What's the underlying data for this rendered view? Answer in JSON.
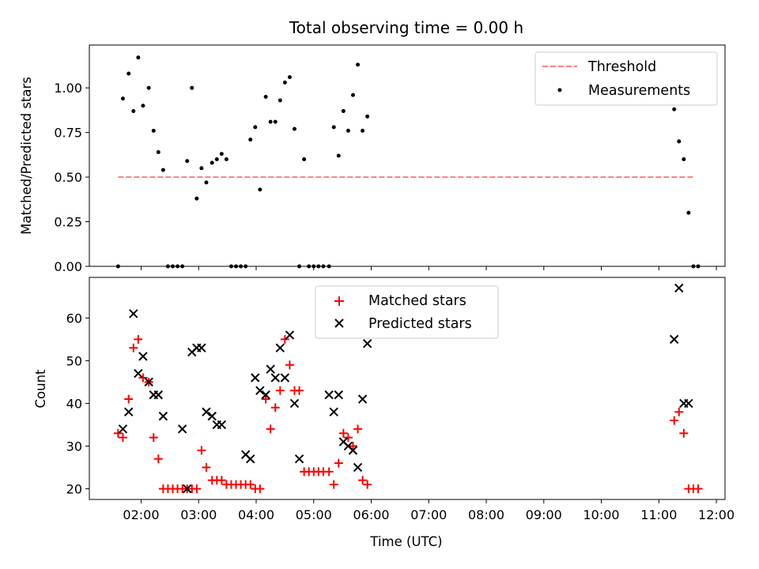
{
  "chart_data": [
    {
      "type": "scatter",
      "title": "Total observing time = 0.00 h",
      "xlabel": "",
      "ylabel": "Matched/Predicted stars",
      "xlim": [
        "01:06",
        "12:09"
      ],
      "ylim": [
        0,
        1.24
      ],
      "yticks": [
        "0.00",
        "0.25",
        "0.50",
        "0.75",
        "1.00"
      ],
      "legend": "top-right",
      "series": [
        {
          "name": "Threshold",
          "kind": "dashed-line",
          "color": "#ff7f7f",
          "x": [
            "01:36",
            "11:36"
          ],
          "y": [
            0.5,
            0.5
          ]
        },
        {
          "name": "Measurements",
          "kind": "points",
          "color": "#000000",
          "x": [
            "01:36",
            "01:41",
            "01:47",
            "01:52",
            "01:57",
            "02:02",
            "02:08",
            "02:13",
            "02:18",
            "02:23",
            "02:28",
            "02:33",
            "02:38",
            "02:43",
            "02:48",
            "02:53",
            "02:58",
            "03:03",
            "03:08",
            "03:14",
            "03:19",
            "03:24",
            "03:29",
            "03:34",
            "03:39",
            "03:44",
            "03:49",
            "03:54",
            "03:59",
            "04:04",
            "04:10",
            "04:15",
            "04:20",
            "04:25",
            "04:30",
            "04:35",
            "04:40",
            "04:45",
            "04:50",
            "04:55",
            "05:00",
            "05:05",
            "05:10",
            "05:16",
            "05:21",
            "05:26",
            "05:31",
            "05:36",
            "05:41",
            "05:46",
            "05:51",
            "05:56",
            "11:16",
            "11:21",
            "11:26",
            "11:31",
            "11:36",
            "11:41"
          ],
          "y": [
            0.0,
            0.94,
            1.08,
            0.87,
            1.17,
            0.9,
            1.0,
            0.76,
            0.64,
            0.54,
            0.0,
            0.0,
            0.0,
            0.0,
            0.59,
            1.0,
            0.38,
            0.55,
            0.47,
            0.58,
            0.6,
            0.63,
            0.6,
            0.0,
            0.0,
            0.0,
            0.0,
            0.71,
            0.78,
            0.43,
            0.95,
            0.81,
            0.81,
            0.93,
            1.03,
            1.06,
            0.77,
            0.0,
            0.6,
            0.0,
            0.0,
            0.0,
            0.0,
            0.0,
            0.78,
            0.62,
            0.87,
            0.76,
            0.96,
            1.13,
            0.76,
            0.84,
            0.88,
            0.7,
            0.6,
            0.3,
            0.0,
            0.0
          ]
        }
      ]
    },
    {
      "type": "scatter",
      "title": "",
      "xlabel": "Time (UTC)",
      "ylabel": "Count",
      "xlim": [
        "01:06",
        "12:09"
      ],
      "ylim": [
        17.5,
        69.5
      ],
      "yticks": [
        "20",
        "30",
        "40",
        "50",
        "60"
      ],
      "xticks": [
        "02:00",
        "03:00",
        "04:00",
        "05:00",
        "06:00",
        "07:00",
        "08:00",
        "09:00",
        "10:00",
        "11:00",
        "12:00"
      ],
      "legend": "top-center",
      "series": [
        {
          "name": "Matched stars",
          "marker": "plus",
          "color": "#ff0000",
          "x": [
            "01:36",
            "01:41",
            "01:47",
            "01:52",
            "01:57",
            "02:02",
            "02:08",
            "02:13",
            "02:18",
            "02:23",
            "02:28",
            "02:33",
            "02:38",
            "02:43",
            "02:48",
            "02:53",
            "02:58",
            "03:03",
            "03:08",
            "03:14",
            "03:19",
            "03:24",
            "03:29",
            "03:34",
            "03:39",
            "03:44",
            "03:49",
            "03:54",
            "03:59",
            "04:04",
            "04:10",
            "04:15",
            "04:20",
            "04:25",
            "04:30",
            "04:35",
            "04:40",
            "04:45",
            "04:50",
            "04:55",
            "05:00",
            "05:05",
            "05:10",
            "05:16",
            "05:21",
            "05:26",
            "05:31",
            "05:36",
            "05:41",
            "05:46",
            "05:51",
            "05:56",
            "11:16",
            "11:21",
            "11:26",
            "11:31",
            "11:36",
            "11:41"
          ],
          "y": [
            33,
            32,
            41,
            53,
            55,
            46,
            45,
            32,
            27,
            20,
            20,
            20,
            20,
            20,
            20,
            20,
            20,
            29,
            25,
            22,
            22,
            22,
            21,
            21,
            21,
            21,
            21,
            21,
            20,
            20,
            41,
            34,
            39,
            43,
            55,
            49,
            43,
            43,
            24,
            24,
            24,
            24,
            24,
            24,
            21,
            26,
            33,
            32,
            30,
            34,
            22,
            21,
            36,
            38,
            33,
            20,
            20,
            20
          ]
        },
        {
          "name": "Predicted stars",
          "marker": "x",
          "color": "#000000",
          "x": [
            "01:41",
            "01:47",
            "01:52",
            "01:57",
            "02:02",
            "02:08",
            "02:13",
            "02:18",
            "02:23",
            "02:43",
            "02:48",
            "02:53",
            "02:58",
            "03:03",
            "03:08",
            "03:14",
            "03:19",
            "03:24",
            "03:49",
            "03:54",
            "03:59",
            "04:04",
            "04:10",
            "04:15",
            "04:20",
            "04:25",
            "04:30",
            "04:35",
            "04:40",
            "04:45",
            "05:16",
            "05:21",
            "05:26",
            "05:31",
            "05:36",
            "05:41",
            "05:46",
            "05:51",
            "05:56",
            "11:16",
            "11:21",
            "11:26",
            "11:31"
          ],
          "y": [
            34,
            38,
            61,
            47,
            51,
            45,
            42,
            42,
            37,
            34,
            20,
            52,
            53,
            53,
            38,
            37,
            35,
            35,
            28,
            27,
            46,
            43,
            42,
            48,
            46,
            53,
            46,
            56,
            40,
            27,
            42,
            38,
            42,
            31,
            30,
            29,
            25,
            41,
            54,
            55,
            67,
            40,
            40
          ]
        }
      ]
    }
  ],
  "legend_top": [
    "Threshold",
    "Measurements"
  ],
  "legend_bottom": [
    "Matched stars",
    "Predicted stars"
  ]
}
